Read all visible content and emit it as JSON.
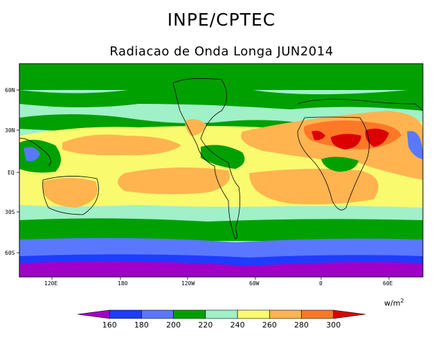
{
  "header": {
    "title": "INPE/CPTEC",
    "subtitle": "Radiacao de Onda Longa JUN2014"
  },
  "map": {
    "lon_ticks": [
      "120E",
      "180",
      "120W",
      "60W",
      "0",
      "60E"
    ],
    "lat_ticks": [
      "60N",
      "30N",
      "EQ",
      "30S",
      "60S"
    ],
    "lat_range": [
      -85,
      85
    ],
    "lon_range": [
      100,
      460
    ]
  },
  "legend": {
    "units_base": "w/m",
    "units_exp": "2",
    "levels": [
      "160",
      "180",
      "200",
      "220",
      "240",
      "260",
      "280",
      "300"
    ],
    "colors": [
      "#a000c8",
      "#1e3cff",
      "#5a78ff",
      "#00a000",
      "#a0f0c8",
      "#fafa6e",
      "#ffb450",
      "#ff7828",
      "#dc0000"
    ]
  }
}
